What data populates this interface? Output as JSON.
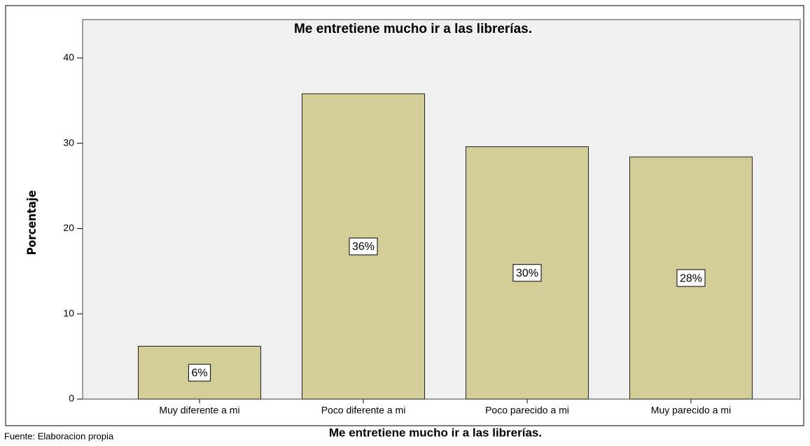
{
  "chart_data": {
    "type": "bar",
    "title": "Me entretiene mucho ir a las librerías.",
    "x_label": "Me entretiene mucho ir a las librerías.",
    "y_label": "Porcentaje",
    "source": "Fuente: Elaboracion propia",
    "categories": [
      "Muy diferente a mi",
      "Poco diferente a mi",
      "Poco parecido a mi",
      "Muy parecido a mi"
    ],
    "values": [
      6.2,
      35.8,
      29.6,
      28.4
    ],
    "value_labels": [
      "6%",
      "36%",
      "30%",
      "28%"
    ],
    "color": "#d3ce97",
    "ylim": [
      0,
      44.5
    ],
    "yticks": [
      0,
      10,
      20,
      30,
      40
    ]
  }
}
